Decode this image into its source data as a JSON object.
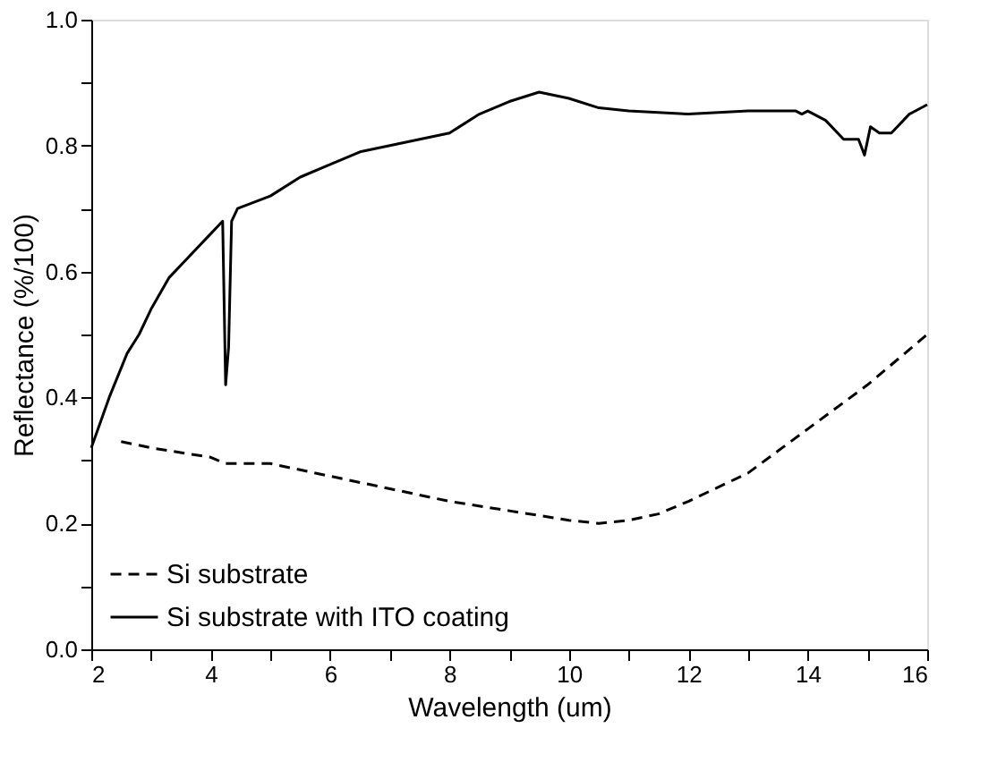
{
  "chart_data": {
    "type": "line",
    "xlabel": "Wavelength (um)",
    "ylabel": "Reflectance (%/100)",
    "xlim": [
      2,
      16
    ],
    "ylim": [
      0,
      1.0
    ],
    "xticks": [
      2,
      {
        "value": 3,
        "label": null
      },
      4,
      {
        "value": 5,
        "label": null
      },
      6,
      {
        "value": 7,
        "label": null
      },
      8,
      {
        "value": 9,
        "label": null
      },
      10,
      {
        "value": 11,
        "label": null
      },
      12,
      {
        "value": 13,
        "label": null
      },
      14,
      {
        "value": 15,
        "label": null
      },
      16
    ],
    "yticks": [
      {
        "value": 0,
        "label": "0.0"
      },
      {
        "value": 0.1,
        "label": null
      },
      {
        "value": 0.2,
        "label": "0.2"
      },
      {
        "value": 0.3,
        "label": null
      },
      {
        "value": 0.4,
        "label": "0.4"
      },
      {
        "value": 0.5,
        "label": null
      },
      {
        "value": 0.6,
        "label": "0.6"
      },
      {
        "value": 0.7,
        "label": null
      },
      {
        "value": 0.8,
        "label": "0.8"
      },
      {
        "value": 0.9,
        "label": null
      },
      {
        "value": 1.0,
        "label": "1.0"
      }
    ],
    "legend": "bottom left",
    "grid": false,
    "series": [
      {
        "name": "Si substrate",
        "color": "#000000",
        "line_style": "dashed",
        "x": [
          2.5,
          3,
          4,
          4.25,
          5,
          6,
          7,
          8,
          9,
          10,
          10.5,
          11,
          11.5,
          12,
          13,
          14,
          15,
          16
        ],
        "values": [
          0.33,
          0.32,
          0.305,
          0.295,
          0.295,
          0.275,
          0.255,
          0.235,
          0.22,
          0.205,
          0.2,
          0.205,
          0.215,
          0.235,
          0.28,
          0.35,
          0.42,
          0.5
        ]
      },
      {
        "name": "Si substrate with ITO coating",
        "color": "#000000",
        "line_style": "solid",
        "x": [
          2.0,
          2.3,
          2.6,
          2.8,
          3.0,
          3.3,
          3.6,
          4.0,
          4.2,
          4.25,
          4.3,
          4.35,
          4.45,
          5.0,
          5.5,
          6.0,
          6.5,
          7.0,
          7.5,
          8.0,
          8.5,
          9.0,
          9.5,
          10.0,
          10.5,
          11,
          12,
          13,
          13.8,
          13.9,
          14.0,
          14.3,
          14.6,
          14.85,
          14.95,
          15.05,
          15.2,
          15.4,
          15.7,
          16
        ],
        "values": [
          0.32,
          0.4,
          0.47,
          0.5,
          0.54,
          0.59,
          0.62,
          0.66,
          0.68,
          0.42,
          0.48,
          0.68,
          0.7,
          0.72,
          0.75,
          0.77,
          0.79,
          0.8,
          0.81,
          0.82,
          0.85,
          0.87,
          0.885,
          0.875,
          0.86,
          0.855,
          0.85,
          0.855,
          0.855,
          0.85,
          0.855,
          0.84,
          0.81,
          0.81,
          0.785,
          0.83,
          0.82,
          0.82,
          0.85,
          0.865
        ]
      }
    ]
  }
}
